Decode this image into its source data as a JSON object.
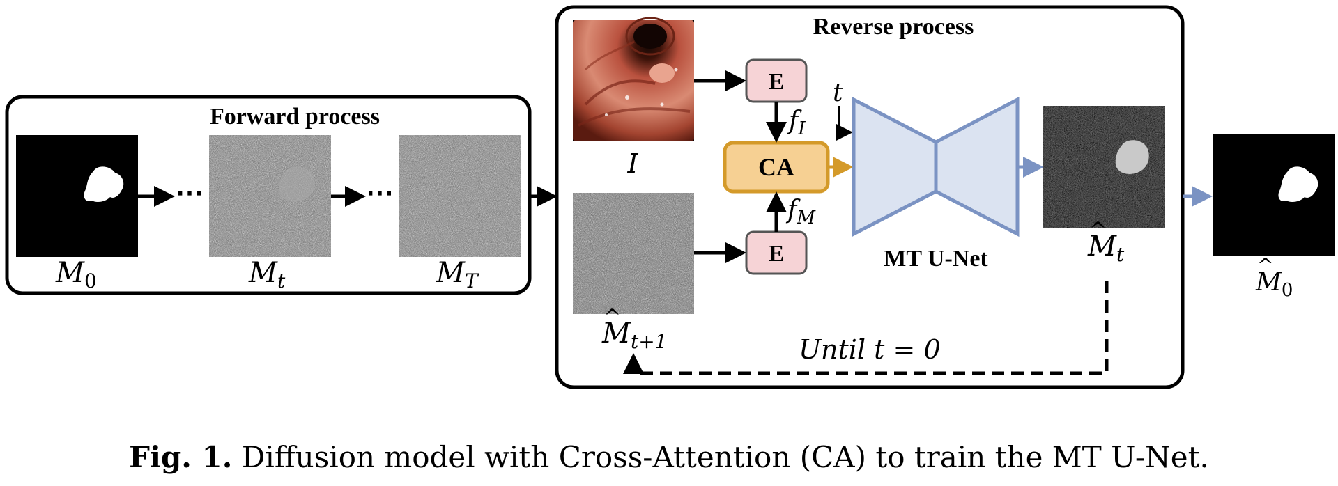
{
  "forward": {
    "title": "Forward process",
    "labels": {
      "m0": "M",
      "m0_sub": "0",
      "mt": "M",
      "mt_sub": "t",
      "mT": "M",
      "mT_sub": "T"
    }
  },
  "reverse": {
    "title": "Reverse process",
    "image_label": "I",
    "encoder_label": "E",
    "ca_label": "CA",
    "f_i": "f",
    "f_i_sub": "I",
    "f_m": "f",
    "f_m_sub": "M",
    "t_label": "t",
    "unet_label": "MT U-Net",
    "mhat_t": "M",
    "mhat_t_sub": "t",
    "mhat_t1": "M",
    "mhat_t1_sub": "t+1",
    "until_label": "Until",
    "until_cond": "t = 0"
  },
  "output": {
    "label": "M",
    "label_sub": "0"
  },
  "caption": {
    "prefix": "Fig. 1.",
    "text": " Diffusion model with Cross-Attention (CA) to train the MT U-Net."
  },
  "colors": {
    "encoder_fill": "#f6d3d6",
    "ca_fill": "#f6d093",
    "ca_border": "#d49a2a",
    "unet_fill": "#dbe3f1",
    "unet_border": "#7b93c3",
    "blue_arrow": "#7b93c3",
    "gold_arrow": "#d49a2a"
  }
}
